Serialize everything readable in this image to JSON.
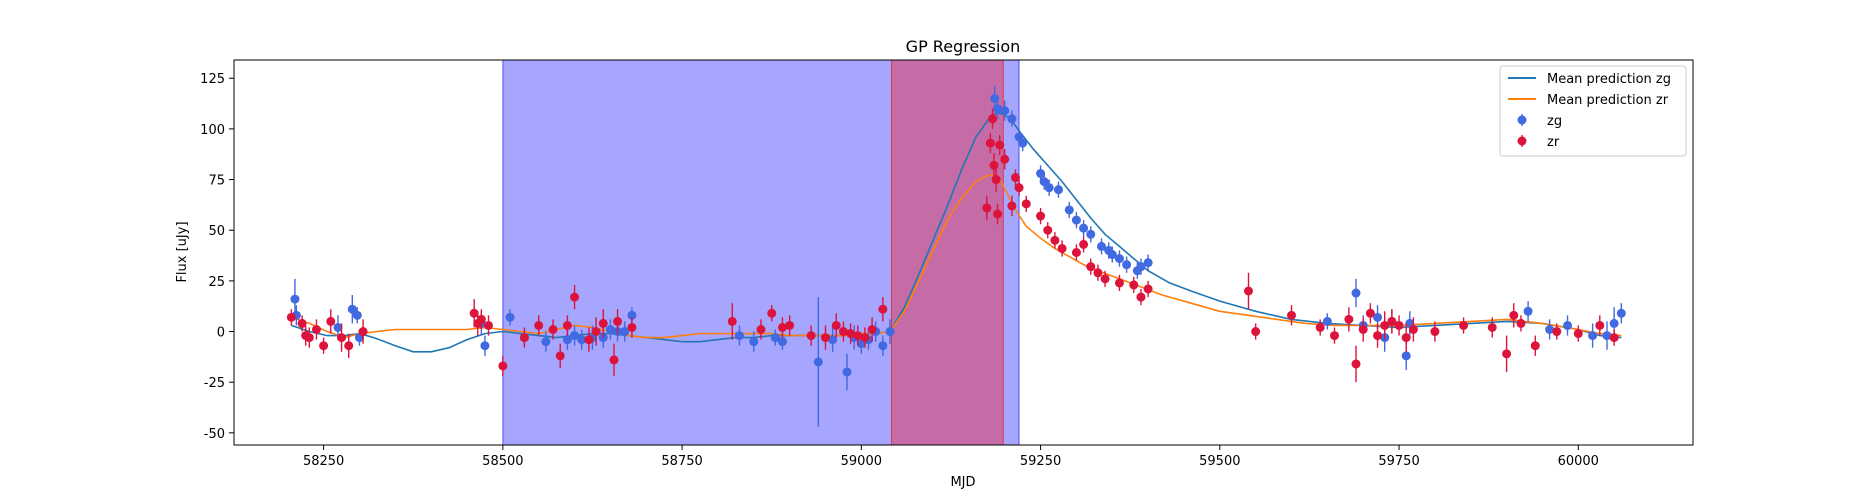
{
  "chart_data": {
    "type": "line",
    "title": "GP Regression",
    "xlabel": "MJD",
    "ylabel": "Flux [uJy]",
    "xlim": [
      58125,
      60160
    ],
    "ylim": [
      -56,
      134
    ],
    "xticks": [
      58250,
      58500,
      58750,
      59000,
      59250,
      59500,
      59750,
      60000
    ],
    "yticks": [
      -50,
      -25,
      0,
      25,
      50,
      75,
      100,
      125
    ],
    "legend": {
      "placement": "top-right"
    },
    "grid": false,
    "spans": [
      {
        "x0": 58500,
        "x1": 59220,
        "color": "#0000ff",
        "opacity": 0.35
      },
      {
        "x0": 59042,
        "x1": 59198,
        "color": "#ff0000",
        "opacity": 0.35
      }
    ],
    "series": [
      {
        "name": "Mean prediction zg",
        "kind": "line",
        "color": "#1f77b4",
        "x": [
          58205,
          58230,
          58255,
          58280,
          58300,
          58320,
          58350,
          58375,
          58400,
          58425,
          58450,
          58475,
          58500,
          58525,
          58550,
          58575,
          58600,
          58625,
          58650,
          58675,
          58700,
          58725,
          58750,
          58775,
          58800,
          58825,
          58850,
          58875,
          58900,
          58925,
          58950,
          58975,
          59000,
          59020,
          59040,
          59060,
          59080,
          59100,
          59120,
          59140,
          59160,
          59180,
          59190,
          59200,
          59210,
          59220,
          59240,
          59260,
          59280,
          59300,
          59320,
          59340,
          59360,
          59380,
          59400,
          59430,
          59460,
          59500,
          59550,
          59600,
          59650,
          59700,
          59750,
          59800,
          59850,
          59900,
          59950,
          60000,
          60030,
          60060
        ],
        "y": [
          3,
          0,
          -2,
          -2,
          -1,
          -3,
          -7,
          -10,
          -10,
          -8,
          -4,
          -1,
          0,
          -1,
          -2,
          -3,
          -2,
          -1,
          -1,
          -2,
          -3,
          -4,
          -5,
          -5,
          -4,
          -3,
          -3,
          -2,
          -2,
          -2,
          -2,
          -2,
          -1,
          -1,
          0,
          12,
          28,
          45,
          62,
          80,
          96,
          106,
          108,
          107,
          104,
          99,
          90,
          82,
          74,
          65,
          56,
          48,
          42,
          36,
          30,
          24,
          20,
          15,
          10,
          6,
          4,
          3,
          2,
          3,
          4,
          5,
          4,
          1,
          -2,
          -3
        ]
      },
      {
        "name": "Mean prediction zr",
        "kind": "line",
        "color": "#ff7f0e",
        "x": [
          58205,
          58230,
          58255,
          58280,
          58300,
          58325,
          58350,
          58375,
          58400,
          58425,
          58450,
          58475,
          58500,
          58525,
          58550,
          58575,
          58600,
          58625,
          58650,
          58675,
          58700,
          58725,
          58750,
          58775,
          58800,
          58825,
          58850,
          58875,
          58900,
          58925,
          58950,
          58975,
          59000,
          59020,
          59040,
          59060,
          59080,
          59100,
          59120,
          59140,
          59160,
          59175,
          59185,
          59195,
          59205,
          59215,
          59230,
          59250,
          59270,
          59290,
          59310,
          59330,
          59360,
          59390,
          59420,
          59460,
          59500,
          59540,
          59580,
          59620,
          59660,
          59700,
          59750,
          59800,
          59850,
          59900,
          59950,
          60000,
          60030,
          60060
        ],
        "y": [
          7,
          4,
          0,
          -3,
          -1,
          0,
          1,
          1,
          1,
          1,
          1,
          2,
          1,
          0,
          -1,
          1,
          3,
          2,
          0,
          -2,
          -3,
          -3,
          -2,
          -1,
          -1,
          -1,
          -1,
          -1,
          -2,
          -2,
          -2,
          -2,
          -1,
          -1,
          0,
          10,
          25,
          40,
          55,
          66,
          74,
          77,
          77,
          74,
          67,
          60,
          52,
          46,
          41,
          37,
          33,
          30,
          26,
          22,
          18,
          14,
          10,
          8,
          6,
          4,
          3,
          3,
          3,
          4,
          5,
          6,
          4,
          1,
          -1,
          -2
        ]
      },
      {
        "name": "zg",
        "kind": "errorbar",
        "color": "#4169e1",
        "x": [
          58210,
          58212,
          58270,
          58290,
          58297,
          58300,
          58470,
          58475,
          58510,
          58530,
          58560,
          58590,
          58600,
          58610,
          58625,
          58640,
          58650,
          58660,
          58670,
          58680,
          58830,
          58850,
          58880,
          58890,
          58940,
          58960,
          58980,
          58990,
          59000,
          59010,
          59020,
          59030,
          59040,
          59186,
          59190,
          59200,
          59210,
          59220,
          59225,
          59250,
          59255,
          59262,
          59275,
          59290,
          59300,
          59310,
          59320,
          59335,
          59345,
          59350,
          59360,
          59370,
          59385,
          59390,
          59400,
          59650,
          59690,
          59700,
          59720,
          59730,
          59740,
          59760,
          59765,
          59930,
          59960,
          59985,
          60020,
          60040,
          60050,
          60060
        ],
        "y": [
          16,
          8,
          2,
          11,
          8,
          -3,
          4,
          -7,
          7,
          -3,
          -5,
          -4,
          -2,
          -4,
          -3,
          -3,
          1,
          0,
          0,
          8,
          -2,
          -5,
          -3,
          -5,
          -15,
          -4,
          -20,
          -3,
          -6,
          -4,
          0,
          -7,
          0,
          115,
          110,
          109,
          105,
          96,
          93,
          78,
          74,
          71,
          70,
          60,
          55,
          51,
          48,
          42,
          40,
          38,
          36,
          33,
          30,
          32,
          34,
          5,
          19,
          3,
          7,
          -3,
          5,
          -12,
          4,
          10,
          1,
          3,
          -2,
          -2,
          4,
          9
        ],
        "err": [
          10,
          5,
          6,
          7,
          4,
          4,
          6,
          5,
          4,
          4,
          5,
          5,
          5,
          5,
          6,
          5,
          5,
          5,
          5,
          4,
          5,
          5,
          4,
          4,
          32,
          6,
          9,
          6,
          5,
          5,
          5,
          5,
          6,
          6,
          5,
          5,
          4,
          4,
          4,
          4,
          4,
          4,
          4,
          4,
          4,
          4,
          4,
          4,
          4,
          4,
          4,
          4,
          4,
          4,
          4,
          4,
          7,
          5,
          6,
          7,
          6,
          7,
          6,
          5,
          5,
          5,
          6,
          7,
          8,
          5
        ],
        "marker_size": 4.5
      },
      {
        "name": "zr",
        "kind": "errorbar",
        "color": "#dc143c",
        "x": [
          58205,
          58220,
          58225,
          58230,
          58240,
          58250,
          58260,
          58275,
          58285,
          58305,
          58460,
          58465,
          58470,
          58480,
          58500,
          58530,
          58550,
          58570,
          58580,
          58590,
          58600,
          58620,
          58630,
          58640,
          58655,
          58660,
          58680,
          58820,
          58860,
          58875,
          58890,
          58900,
          58930,
          58950,
          58965,
          58975,
          58985,
          58995,
          59005,
          59015,
          59030,
          59175,
          59180,
          59183,
          59185,
          59188,
          59190,
          59193,
          59200,
          59210,
          59215,
          59220,
          59230,
          59250,
          59260,
          59270,
          59280,
          59300,
          59310,
          59320,
          59330,
          59340,
          59360,
          59380,
          59390,
          59400,
          59540,
          59550,
          59600,
          59640,
          59660,
          59680,
          59690,
          59700,
          59710,
          59720,
          59730,
          59740,
          59750,
          59760,
          59770,
          59800,
          59840,
          59880,
          59900,
          59910,
          59920,
          59940,
          59970,
          60000,
          60030,
          60050
        ],
        "y": [
          7,
          4,
          -2,
          -3,
          1,
          -7,
          5,
          -3,
          -7,
          0,
          9,
          4,
          6,
          3,
          -17,
          -3,
          3,
          1,
          -12,
          3,
          17,
          -4,
          0,
          4,
          -14,
          5,
          2,
          5,
          1,
          9,
          2,
          3,
          -2,
          -3,
          3,
          0,
          -1,
          -2,
          -3,
          1,
          11,
          61,
          93,
          105,
          82,
          75,
          58,
          92,
          85,
          62,
          76,
          71,
          63,
          57,
          50,
          45,
          41,
          39,
          43,
          32,
          29,
          26,
          24,
          23,
          17,
          21,
          20,
          0,
          8,
          2,
          -2,
          6,
          -16,
          1,
          9,
          -2,
          3,
          5,
          3,
          -3,
          1,
          0,
          3,
          2,
          -11,
          8,
          4,
          -7,
          0,
          -1,
          3,
          -3
        ],
        "err": [
          4,
          4,
          5,
          5,
          5,
          4,
          6,
          7,
          6,
          6,
          7,
          6,
          5,
          5,
          5,
          5,
          5,
          5,
          6,
          5,
          6,
          6,
          7,
          7,
          8,
          6,
          5,
          9,
          5,
          4,
          5,
          5,
          5,
          6,
          6,
          5,
          5,
          5,
          5,
          6,
          6,
          6,
          5,
          5,
          6,
          6,
          5,
          5,
          5,
          5,
          4,
          4,
          4,
          4,
          4,
          4,
          4,
          4,
          4,
          4,
          4,
          4,
          4,
          4,
          4,
          4,
          9,
          4,
          5,
          4,
          4,
          6,
          9,
          6,
          5,
          6,
          7,
          6,
          5,
          7,
          6,
          5,
          4,
          5,
          9,
          6,
          4,
          5,
          4,
          4,
          5,
          4
        ],
        "marker_size": 4.5
      }
    ]
  }
}
